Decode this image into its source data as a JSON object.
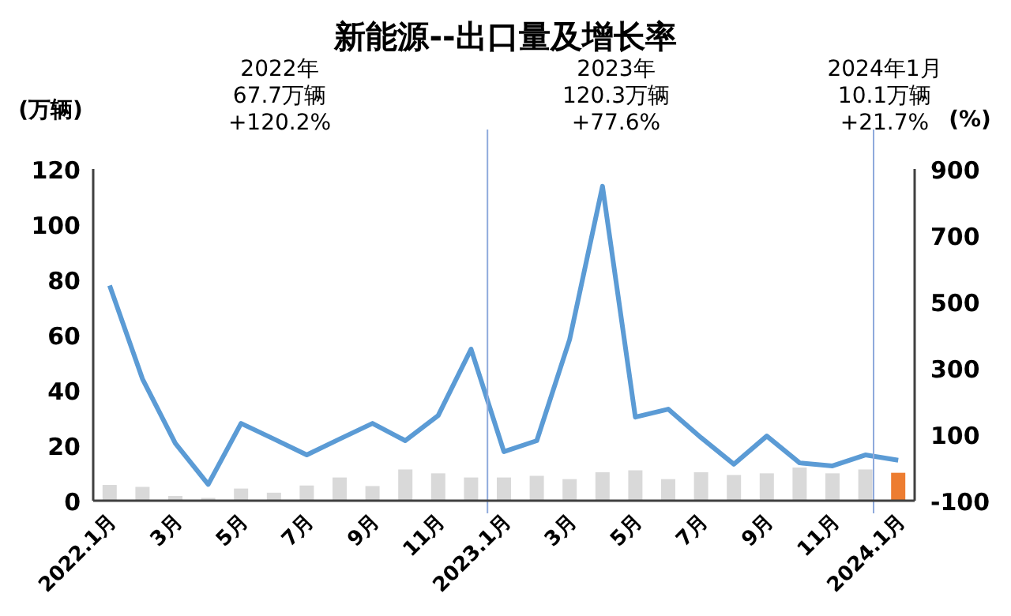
{
  "chart_data": {
    "type": "bar",
    "title": "新能源--出口量及增长率",
    "ylabel": "(万辆)",
    "y2label": "(%)",
    "categories": [
      "2022.1月",
      null,
      "3月",
      null,
      "5月",
      null,
      "7月",
      null,
      "9月",
      null,
      "11月",
      null,
      "2023.1月",
      null,
      "3月",
      null,
      "5月",
      null,
      "7月",
      null,
      "9月",
      null,
      "11月",
      null,
      "2024.1月"
    ],
    "series": [
      {
        "colors": [
          "#d9d9d9",
          "#d9d9d9",
          "#d9d9d9",
          "#d9d9d9",
          "#d9d9d9",
          "#d9d9d9",
          "#d9d9d9",
          "#d9d9d9",
          "#d9d9d9",
          "#d9d9d9",
          "#d9d9d9",
          "#d9d9d9",
          "#d9d9d9",
          "#d9d9d9",
          "#d9d9d9",
          "#d9d9d9",
          "#d9d9d9",
          "#d9d9d9",
          "#d9d9d9",
          "#d9d9d9",
          "#d9d9d9",
          "#d9d9d9",
          "#d9d9d9",
          "#d9d9d9",
          "#ed7d31"
        ],
        "values": [
          5.7,
          5.0,
          1.7,
          1.0,
          4.4,
          2.9,
          5.5,
          8.4,
          5.3,
          11.3,
          9.9,
          8.4,
          8.4,
          9.0,
          7.8,
          10.3,
          11.0,
          7.8,
          10.3,
          9.3,
          9.9,
          12.0,
          9.9,
          11.3,
          10.1
        ]
      },
      {
        "type": "line",
        "axis": "y2",
        "color": "#5b9bd5",
        "values": [
          549,
          267,
          73,
          -51,
          133,
          86,
          38,
          86,
          133,
          81,
          157,
          357,
          48,
          81,
          386,
          848,
          152,
          176,
          90,
          10,
          95,
          14,
          5,
          38,
          22
        ]
      }
    ],
    "ylim": [
      0,
      120
    ],
    "yticks": [
      0,
      20,
      40,
      60,
      80,
      100,
      120
    ],
    "y2lim": [
      -100,
      900
    ],
    "y2ticks": [
      -100,
      100,
      300,
      500,
      700,
      900
    ],
    "annotations": [
      "2022年\n67.7万辆\n+120.2%",
      "2023年\n120.3万辆\n+77.6%",
      "2024年1月\n10.1万辆\n+21.7%"
    ],
    "marker": "none",
    "line_style": "solid"
  }
}
